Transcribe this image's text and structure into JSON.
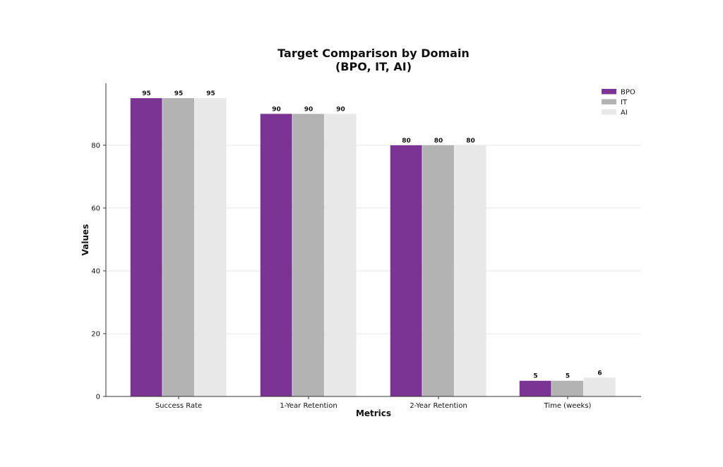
{
  "chart_data": {
    "type": "bar",
    "title_lines": [
      "Target Comparison by Domain",
      "(BPO, IT, AI)"
    ],
    "xlabel": "Metrics",
    "ylabel": "Values",
    "categories": [
      "Success Rate",
      "1-Year Retention",
      "2-Year Retention",
      "Time (weeks)"
    ],
    "series": [
      {
        "name": "BPO",
        "color": "#7a3594",
        "values": [
          95,
          90,
          80,
          5
        ]
      },
      {
        "name": "IT",
        "color": "#b3b3b3",
        "values": [
          95,
          90,
          80,
          5
        ]
      },
      {
        "name": "AI",
        "color": "#e8e8e8",
        "values": [
          95,
          90,
          80,
          6
        ]
      }
    ],
    "yticks": [
      0,
      20,
      40,
      60,
      80
    ],
    "ylim": [
      0,
      99.75
    ],
    "grid": "horizontal",
    "legend": "top-right"
  }
}
